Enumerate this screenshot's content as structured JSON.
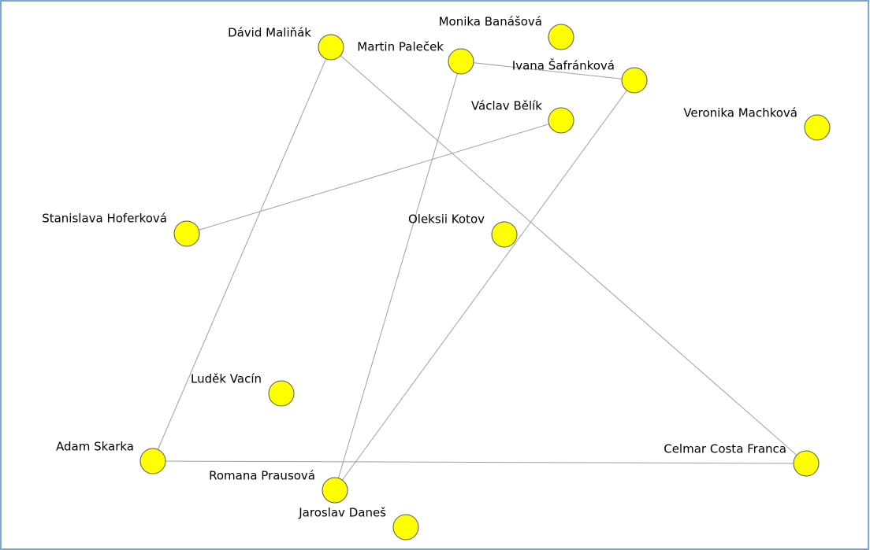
{
  "nodes": [
    {
      "label": "Dávid Maliňák"
    },
    {
      "label": "Monika Banášová"
    },
    {
      "label": "Martin Paleček"
    },
    {
      "label": "Ivana Šafránková"
    },
    {
      "label": "Václav Bělík"
    },
    {
      "label": "Veronika Machková"
    },
    {
      "label": "Stanislava Hoferková"
    },
    {
      "label": "Oleksii Kotov"
    },
    {
      "label": "Luděk Vacín"
    },
    {
      "label": "Adam Skarka"
    },
    {
      "label": "Celmar Costa Franca"
    },
    {
      "label": "Romana Prausová"
    },
    {
      "label": "Jaroslav Daneš"
    }
  ]
}
